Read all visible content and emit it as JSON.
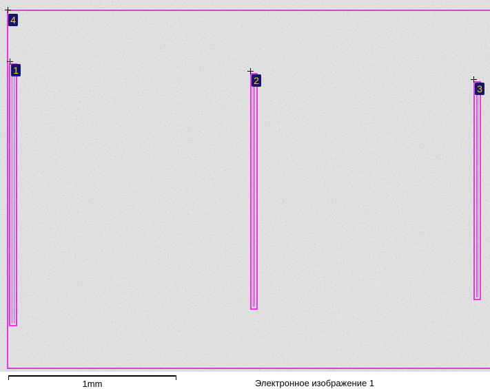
{
  "image": {
    "caption": "Электронное изображение 1",
    "scale_bar_label": "1mm"
  },
  "regions": [
    {
      "label": "4"
    },
    {
      "label": "1"
    },
    {
      "label": "2"
    },
    {
      "label": "3"
    }
  ],
  "colors": {
    "region_outline": "#ee33ee",
    "label_background": "#15156e",
    "label_text": "#ffd400"
  }
}
